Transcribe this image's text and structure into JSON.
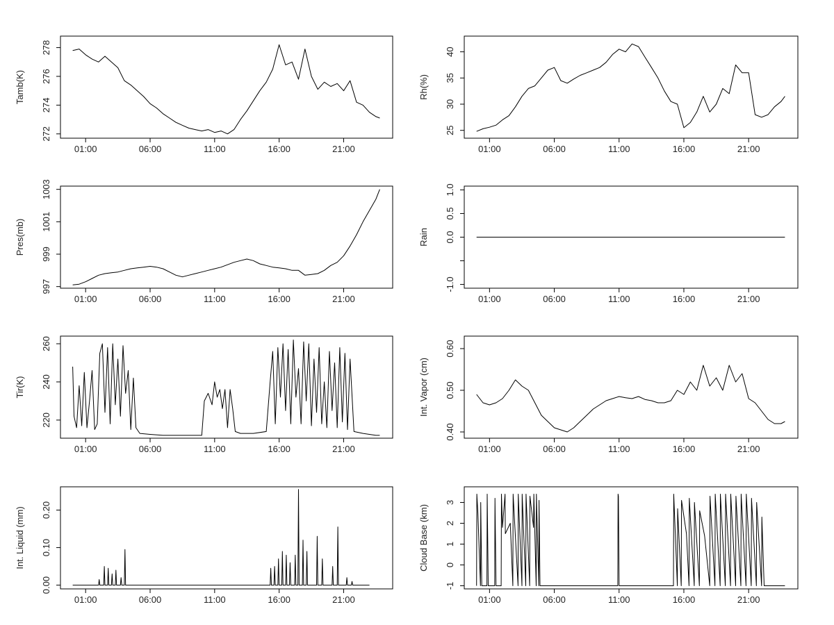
{
  "chart_data": [
    {
      "type": "line",
      "title": "",
      "ylabel": "Tamb(K)",
      "xlabel": "",
      "x_tick_labels": [
        "01:00",
        "06:00",
        "11:00",
        "16:00",
        "21:00"
      ],
      "x_ticks_hours": [
        1,
        6,
        11,
        16,
        21
      ],
      "xlim_hours": [
        -0.95,
        24.8
      ],
      "ylim": [
        271.7,
        278.8
      ],
      "y_ticks": [
        272,
        274,
        276,
        278
      ],
      "x_hours": [
        0,
        0.5,
        1,
        1.5,
        2,
        2.5,
        3,
        3.5,
        4,
        4.5,
        5,
        5.5,
        6,
        6.5,
        7,
        7.5,
        8,
        8.5,
        9,
        9.5,
        10,
        10.5,
        11,
        11.5,
        12,
        12.5,
        13,
        13.5,
        14,
        14.5,
        15,
        15.5,
        16,
        16.5,
        17,
        17.5,
        18,
        18.5,
        19,
        19.5,
        20,
        20.5,
        21,
        21.5,
        22,
        22.5,
        23,
        23.5,
        23.8
      ],
      "values": [
        277.8,
        277.9,
        277.5,
        277.2,
        277.0,
        277.4,
        277.0,
        276.6,
        275.7,
        275.4,
        275.0,
        274.6,
        274.1,
        273.8,
        273.4,
        273.1,
        272.8,
        272.6,
        272.4,
        272.3,
        272.2,
        272.3,
        272.1,
        272.2,
        272.0,
        272.3,
        273.0,
        273.6,
        274.3,
        275.0,
        275.6,
        276.5,
        278.2,
        276.8,
        277.0,
        275.8,
        277.9,
        276.0,
        275.1,
        275.6,
        275.3,
        275.5,
        275.0,
        275.7,
        274.2,
        274.0,
        273.5,
        273.2,
        273.1
      ]
    },
    {
      "type": "line",
      "title": "",
      "ylabel": "Rh(%)",
      "xlabel": "",
      "x_tick_labels": [
        "01:00",
        "06:00",
        "11:00",
        "16:00",
        "21:00"
      ],
      "x_ticks_hours": [
        1,
        6,
        11,
        16,
        21
      ],
      "xlim_hours": [
        -0.95,
        24.8
      ],
      "ylim": [
        23.5,
        43
      ],
      "y_ticks": [
        25,
        30,
        35,
        40
      ],
      "x_hours": [
        0,
        0.5,
        1,
        1.5,
        2,
        2.5,
        3,
        3.5,
        4,
        4.5,
        5,
        5.5,
        6,
        6.5,
        7,
        7.5,
        8,
        8.5,
        9,
        9.5,
        10,
        10.5,
        11,
        11.5,
        12,
        12.5,
        13,
        13.5,
        14,
        14.5,
        15,
        15.5,
        16,
        16.5,
        17,
        17.5,
        18,
        18.5,
        19,
        19.5,
        20,
        20.5,
        21,
        21.5,
        22,
        22.5,
        23,
        23.5,
        23.8
      ],
      "values": [
        24.8,
        25.3,
        25.6,
        26.0,
        27.0,
        27.8,
        29.5,
        31.5,
        33.0,
        33.5,
        35.0,
        36.5,
        37.0,
        34.5,
        34.0,
        34.8,
        35.5,
        36.0,
        36.5,
        37.0,
        38.0,
        39.5,
        40.5,
        40.0,
        41.5,
        41.0,
        39.0,
        37.0,
        35.0,
        32.5,
        30.5,
        30.0,
        25.5,
        26.5,
        28.5,
        31.5,
        28.5,
        30.0,
        33.0,
        32.0,
        37.5,
        36.0,
        36.0,
        28.0,
        27.5,
        28.0,
        29.5,
        30.5,
        31.5
      ]
    },
    {
      "type": "line",
      "title": "",
      "ylabel": "Pres(mb)",
      "xlabel": "",
      "x_tick_labels": [
        "01:00",
        "06:00",
        "11:00",
        "16:00",
        "21:00"
      ],
      "x_ticks_hours": [
        1,
        6,
        11,
        16,
        21
      ],
      "xlim_hours": [
        -0.95,
        24.8
      ],
      "ylim": [
        996.9,
        1003.2
      ],
      "y_ticks": [
        997,
        999,
        1001,
        1003
      ],
      "x_hours": [
        0,
        0.5,
        1,
        1.5,
        2,
        2.5,
        3,
        3.5,
        4,
        4.5,
        5,
        5.5,
        6,
        6.5,
        7,
        7.5,
        8,
        8.5,
        9,
        9.5,
        10,
        10.5,
        11,
        11.5,
        12,
        12.5,
        13,
        13.5,
        14,
        14.5,
        15,
        15.5,
        16,
        16.5,
        17,
        17.5,
        18,
        18.5,
        19,
        19.5,
        20,
        20.5,
        21,
        21.5,
        22,
        22.5,
        23,
        23.5,
        23.8
      ],
      "values": [
        997.1,
        997.15,
        997.3,
        997.5,
        997.7,
        997.8,
        997.85,
        997.9,
        998.0,
        998.1,
        998.15,
        998.2,
        998.25,
        998.2,
        998.1,
        997.9,
        997.7,
        997.6,
        997.7,
        997.8,
        997.9,
        998.0,
        998.1,
        998.2,
        998.35,
        998.5,
        998.6,
        998.7,
        998.6,
        998.4,
        998.3,
        998.2,
        998.15,
        998.1,
        998.0,
        998.0,
        997.7,
        997.75,
        997.8,
        998.0,
        998.3,
        998.5,
        998.9,
        999.5,
        1000.2,
        1001.0,
        1001.7,
        1002.4,
        1003.0
      ]
    },
    {
      "type": "line",
      "title": "",
      "ylabel": "Rain",
      "xlabel": "",
      "x_tick_labels": [
        "01:00",
        "06:00",
        "11:00",
        "16:00",
        "21:00"
      ],
      "x_ticks_hours": [
        1,
        6,
        11,
        16,
        21
      ],
      "xlim_hours": [
        -0.95,
        24.8
      ],
      "ylim": [
        -1.08,
        1.08
      ],
      "y_ticks": [
        -1.0,
        -0.5,
        0.0,
        0.5,
        1.0
      ],
      "y_tick_labels": [
        "-1.0",
        "",
        "0.0",
        "0.5",
        "1.0"
      ],
      "x_hours": [
        0,
        23.8
      ],
      "values": [
        0.0,
        0.0
      ]
    },
    {
      "type": "line",
      "title": "",
      "ylabel": "Tir(K)",
      "xlabel": "",
      "x_tick_labels": [
        "01:00",
        "06:00",
        "11:00",
        "16:00",
        "21:00"
      ],
      "x_ticks_hours": [
        1,
        6,
        11,
        16,
        21
      ],
      "xlim_hours": [
        -0.95,
        24.8
      ],
      "ylim": [
        210.5,
        264
      ],
      "y_ticks": [
        220,
        240,
        260
      ],
      "x_hours": [
        0,
        0.1,
        0.3,
        0.5,
        0.7,
        0.9,
        1.1,
        1.3,
        1.5,
        1.7,
        1.9,
        2.1,
        2.3,
        2.5,
        2.7,
        2.9,
        3.1,
        3.3,
        3.5,
        3.7,
        3.9,
        4.1,
        4.3,
        4.5,
        4.7,
        4.9,
        5.2,
        6,
        7,
        8,
        9,
        10,
        10.2,
        10.5,
        10.8,
        11.0,
        11.2,
        11.4,
        11.6,
        11.8,
        12.0,
        12.2,
        12.4,
        12.6,
        13.0,
        14.0,
        15.0,
        15.3,
        15.5,
        15.7,
        15.9,
        16.1,
        16.3,
        16.5,
        16.7,
        16.9,
        17.1,
        17.3,
        17.5,
        17.7,
        17.9,
        18.1,
        18.3,
        18.5,
        18.7,
        18.9,
        19.1,
        19.3,
        19.5,
        19.7,
        19.9,
        20.1,
        20.3,
        20.5,
        20.7,
        20.9,
        21.1,
        21.3,
        21.5,
        21.8,
        22.5,
        23.5,
        23.8
      ],
      "values": [
        248,
        222,
        216,
        238,
        217,
        245,
        216,
        230,
        246,
        215,
        218,
        255,
        260,
        224,
        258,
        218,
        260,
        228,
        252,
        222,
        259,
        234,
        246,
        215,
        242,
        216,
        213,
        212.5,
        212,
        212,
        212,
        212,
        230,
        234,
        228,
        240,
        232,
        236,
        226,
        236,
        216,
        236,
        226,
        214,
        213,
        213,
        214,
        240,
        256,
        218,
        258,
        232,
        260,
        225,
        257,
        218,
        262,
        232,
        247,
        218,
        261,
        230,
        260,
        217,
        252,
        224,
        258,
        218,
        240,
        216,
        256,
        225,
        250,
        216,
        258,
        219,
        255,
        215,
        252,
        214,
        213,
        212,
        212
      ]
    },
    {
      "type": "line",
      "title": "",
      "ylabel": "Int. Vapor (cm)",
      "xlabel": "",
      "x_tick_labels": [
        "01:00",
        "06:00",
        "11:00",
        "16:00",
        "21:00"
      ],
      "x_ticks_hours": [
        1,
        6,
        11,
        16,
        21
      ],
      "xlim_hours": [
        -0.95,
        24.8
      ],
      "ylim": [
        0.385,
        0.63
      ],
      "y_ticks": [
        0.4,
        0.5,
        0.6
      ],
      "y_tick_labels": [
        "0.40",
        "0.50",
        "0.60"
      ],
      "x_hours": [
        0,
        0.5,
        1,
        1.5,
        2,
        2.5,
        3,
        3.5,
        4,
        4.5,
        5,
        5.5,
        6,
        6.5,
        7,
        7.5,
        8,
        8.5,
        9,
        9.5,
        10,
        10.5,
        11,
        11.5,
        12,
        12.5,
        13,
        13.5,
        14,
        14.5,
        15,
        15.5,
        16,
        16.5,
        17,
        17.5,
        18,
        18.5,
        19,
        19.5,
        20,
        20.5,
        21,
        21.5,
        22,
        22.5,
        23,
        23.5,
        23.8
      ],
      "values": [
        0.49,
        0.47,
        0.465,
        0.47,
        0.48,
        0.5,
        0.525,
        0.51,
        0.5,
        0.47,
        0.44,
        0.425,
        0.41,
        0.405,
        0.4,
        0.41,
        0.425,
        0.44,
        0.455,
        0.465,
        0.475,
        0.48,
        0.485,
        0.482,
        0.48,
        0.485,
        0.478,
        0.475,
        0.47,
        0.47,
        0.475,
        0.5,
        0.49,
        0.52,
        0.5,
        0.56,
        0.51,
        0.53,
        0.5,
        0.56,
        0.52,
        0.54,
        0.48,
        0.47,
        0.45,
        0.43,
        0.42,
        0.42,
        0.425
      ]
    },
    {
      "type": "line",
      "title": "",
      "ylabel": "Int. Liquid (mm)",
      "xlabel": "",
      "x_tick_labels": [
        "01:00",
        "06:00",
        "11:00",
        "16:00",
        "21:00"
      ],
      "x_ticks_hours": [
        1,
        6,
        11,
        16,
        21
      ],
      "xlim_hours": [
        -0.95,
        24.8
      ],
      "ylim": [
        -0.01,
        0.262
      ],
      "y_ticks": [
        0.0,
        0.1,
        0.2
      ],
      "y_tick_labels": [
        "0.00",
        "0.10",
        "0.20"
      ],
      "x_hours": [
        0,
        2.0,
        2.05,
        2.1,
        2.4,
        2.45,
        2.5,
        2.7,
        2.75,
        2.8,
        3.0,
        3.05,
        3.1,
        3.3,
        3.35,
        3.4,
        3.7,
        3.75,
        3.8,
        4.0,
        4.05,
        4.1,
        15.3,
        15.35,
        15.4,
        15.6,
        15.65,
        15.7,
        15.9,
        15.95,
        16.0,
        16.2,
        16.25,
        16.3,
        16.5,
        16.55,
        16.6,
        16.8,
        16.85,
        16.9,
        17.2,
        17.25,
        17.3,
        17.45,
        17.5,
        17.55,
        17.8,
        17.85,
        17.9,
        18.1,
        18.15,
        18.2,
        18.9,
        18.95,
        19.0,
        19.3,
        19.35,
        19.4,
        20.1,
        20.15,
        20.2,
        20.5,
        20.55,
        20.6,
        21.2,
        21.25,
        21.3,
        21.6,
        21.65,
        21.7,
        23.0
      ],
      "values": [
        0,
        0,
        0.015,
        0,
        0,
        0.05,
        0,
        0,
        0.045,
        0,
        0,
        0.03,
        0,
        0,
        0.04,
        0,
        0,
        0.02,
        0,
        0,
        0.095,
        0,
        0,
        0.045,
        0,
        0,
        0.05,
        0,
        0,
        0.07,
        0,
        0,
        0.09,
        0,
        0,
        0.08,
        0,
        0,
        0.06,
        0,
        0,
        0.08,
        0,
        0,
        0.255,
        0,
        0,
        0.12,
        0,
        0,
        0.09,
        0,
        0,
        0.13,
        0,
        0,
        0.07,
        0,
        0,
        0.05,
        0,
        0,
        0.155,
        0,
        0,
        0.02,
        0,
        0,
        0.01,
        0,
        0
      ]
    },
    {
      "type": "line",
      "title": "",
      "ylabel": "Cloud Base (km)",
      "xlabel": "",
      "x_tick_labels": [
        "01:00",
        "06:00",
        "11:00",
        "16:00",
        "21:00"
      ],
      "x_ticks_hours": [
        1,
        6,
        11,
        16,
        21
      ],
      "xlim_hours": [
        -0.95,
        24.8
      ],
      "ylim": [
        -1.15,
        3.75
      ],
      "y_ticks": [
        -1,
        0,
        1,
        2,
        3
      ],
      "x_hours": [
        0,
        0.02,
        0.1,
        0.3,
        0.32,
        0.4,
        0.8,
        0.82,
        0.9,
        1.4,
        1.42,
        1.5,
        1.9,
        1.92,
        2.0,
        2.2,
        2.22,
        2.6,
        2.8,
        2.82,
        3.2,
        3.22,
        3.5,
        3.52,
        3.8,
        3.82,
        4.1,
        4.12,
        4.4,
        4.42,
        4.6,
        4.62,
        4.8,
        4.82,
        4.9,
        10.9,
        10.92,
        10.95,
        11.0,
        15.2,
        15.22,
        15.5,
        15.52,
        15.8,
        15.82,
        16.2,
        16.4,
        16.42,
        16.8,
        16.82,
        17.2,
        17.22,
        17.6,
        18.0,
        18.02,
        18.4,
        18.42,
        18.8,
        18.82,
        19.2,
        19.22,
        19.6,
        19.62,
        20.0,
        20.02,
        20.4,
        20.42,
        20.8,
        20.82,
        21.2,
        21.22,
        21.6,
        21.62,
        22.0,
        22.02,
        22.2,
        23.8
      ],
      "values": [
        -1,
        3.4,
        2.5,
        -1,
        3.0,
        -1,
        -1,
        3.4,
        -1,
        -1,
        3.2,
        -1,
        -1,
        3.4,
        1.8,
        3.4,
        1.5,
        2.0,
        -1,
        3.4,
        -1,
        3.4,
        -1,
        3.4,
        -1,
        3.4,
        -1,
        3.3,
        1.8,
        3.4,
        -1,
        3.4,
        -1,
        3.1,
        -1,
        -1,
        3.4,
        3.3,
        -1,
        -1,
        3.4,
        -1,
        2.7,
        -1,
        3.1,
        1.5,
        -1,
        3.2,
        -1,
        3.0,
        -1,
        2.6,
        1.4,
        -1,
        3.3,
        -1,
        3.4,
        -1,
        3.4,
        -1,
        3.4,
        -1,
        3.4,
        -1,
        3.3,
        -1,
        3.4,
        -1,
        3.4,
        -1,
        3.2,
        -1,
        3.0,
        -1,
        2.3,
        -1,
        -1
      ]
    }
  ]
}
